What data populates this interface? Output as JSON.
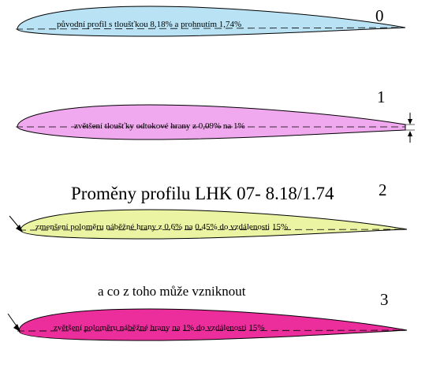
{
  "title": "Proměny profilu LHK 07- 8.18/1.74",
  "subtitle": "a co z toho může vzniknout",
  "profiles": [
    {
      "number": "0",
      "label": "původní profil s tloušťkou  8,18% a prohnutím 1,74%",
      "fill": "#b9e3f4"
    },
    {
      "number": "1",
      "label": "zvětšení tloušťky odtokové hrany z 0,09% na 1%",
      "fill": "#f0a8ee"
    },
    {
      "number": "2",
      "label": "zmenšení poloměru náběžné hrany z 0,6%  na 0,45% do vzdálenosti 15%",
      "fill": "#ebf4a2"
    },
    {
      "number": "3",
      "label": "zvětšení poloměru náběžné hrany na 1% do vzdálenosti 15%",
      "fill": "#ec2e9d"
    }
  ]
}
